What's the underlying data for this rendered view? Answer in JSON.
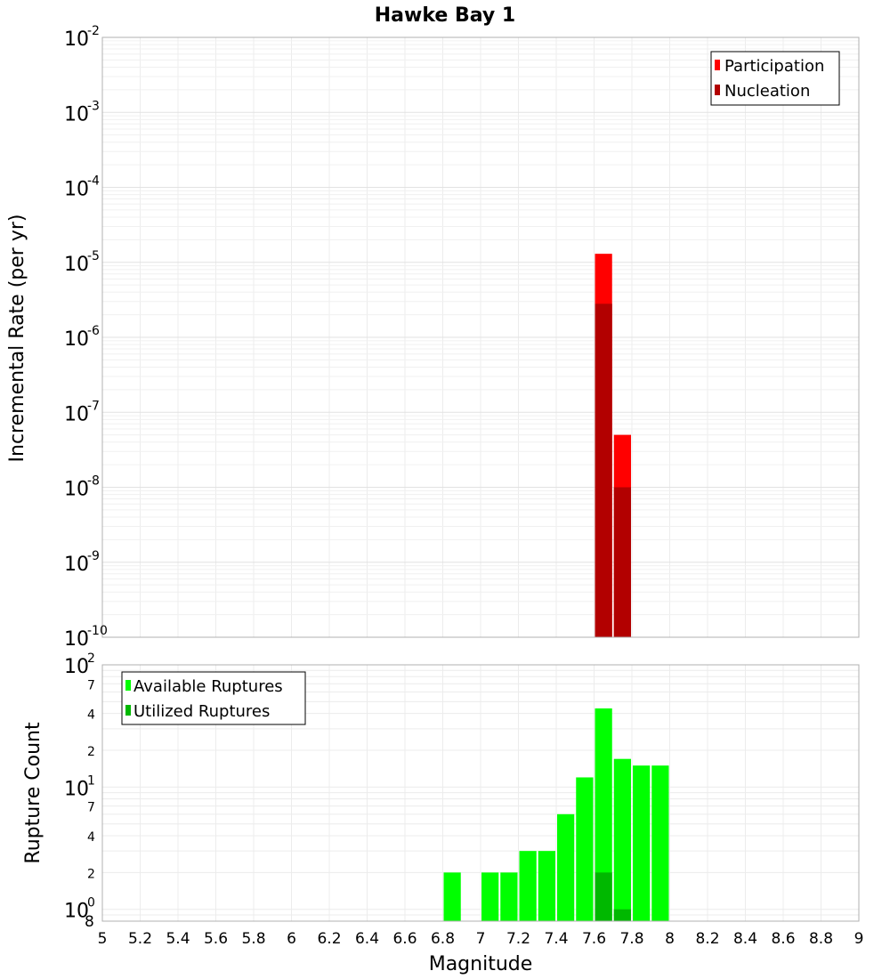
{
  "chart_data": [
    {
      "type": "bar",
      "title": "Hawke Bay 1",
      "xlabel": "Magnitude",
      "ylabel": "Incremental Rate (per yr)",
      "yscale": "log",
      "xlim": [
        5,
        9
      ],
      "ylim": [
        1e-10,
        0.01
      ],
      "x_ticks": [
        "5",
        "5.2",
        "5.4",
        "5.6",
        "5.8",
        "6",
        "6.2",
        "6.4",
        "6.6",
        "6.8",
        "7",
        "7.2",
        "7.4",
        "7.6",
        "7.8",
        "8",
        "8.2",
        "8.4",
        "8.6",
        "8.8",
        "9"
      ],
      "y_ticks": [
        {
          "base": "10",
          "exp": "-10"
        },
        {
          "base": "10",
          "exp": "-9"
        },
        {
          "base": "10",
          "exp": "-8"
        },
        {
          "base": "10",
          "exp": "-7"
        },
        {
          "base": "10",
          "exp": "-6"
        },
        {
          "base": "10",
          "exp": "-5"
        },
        {
          "base": "10",
          "exp": "-4"
        },
        {
          "base": "10",
          "exp": "-3"
        },
        {
          "base": "10",
          "exp": "-2"
        }
      ],
      "bin_width": 0.1,
      "legend_position": "top-right",
      "series": [
        {
          "name": "Participation",
          "color": "#ff0000",
          "x": [
            7.65,
            7.75
          ],
          "values": [
            1.3e-05,
            5e-08
          ]
        },
        {
          "name": "Nucleation",
          "color": "#b20000",
          "x": [
            7.65,
            7.75
          ],
          "values": [
            2.8e-06,
            1e-08
          ]
        }
      ]
    },
    {
      "type": "bar",
      "xlabel": "Magnitude",
      "ylabel": "Rupture Count",
      "yscale": "log",
      "xlim": [
        5,
        9
      ],
      "ylim": [
        0.8,
        100
      ],
      "y_major_ticks": [
        {
          "value": 1,
          "base": "10",
          "exp": "0"
        },
        {
          "value": 10,
          "base": "10",
          "exp": "1"
        },
        {
          "value": 100,
          "base": "10",
          "exp": "2"
        }
      ],
      "y_minor_ticks": [
        {
          "value": 0.8,
          "label": "8"
        },
        {
          "value": 2,
          "label": "2"
        },
        {
          "value": 4,
          "label": "4"
        },
        {
          "value": 7,
          "label": "7"
        },
        {
          "value": 20,
          "label": "2"
        },
        {
          "value": 40,
          "label": "4"
        },
        {
          "value": 70,
          "label": "7"
        }
      ],
      "bin_width": 0.1,
      "legend_position": "top-left",
      "series": [
        {
          "name": "Available Ruptures",
          "color": "#00ff00",
          "x": [
            6.85,
            7.05,
            7.15,
            7.25,
            7.35,
            7.45,
            7.55,
            7.65,
            7.75,
            7.85,
            7.95
          ],
          "values": [
            2,
            2,
            2,
            3,
            3,
            6,
            12,
            44,
            17,
            15,
            15
          ]
        },
        {
          "name": "Utilized Ruptures",
          "color": "#00b800",
          "x": [
            7.65,
            7.75
          ],
          "values": [
            2,
            1
          ]
        }
      ]
    }
  ]
}
